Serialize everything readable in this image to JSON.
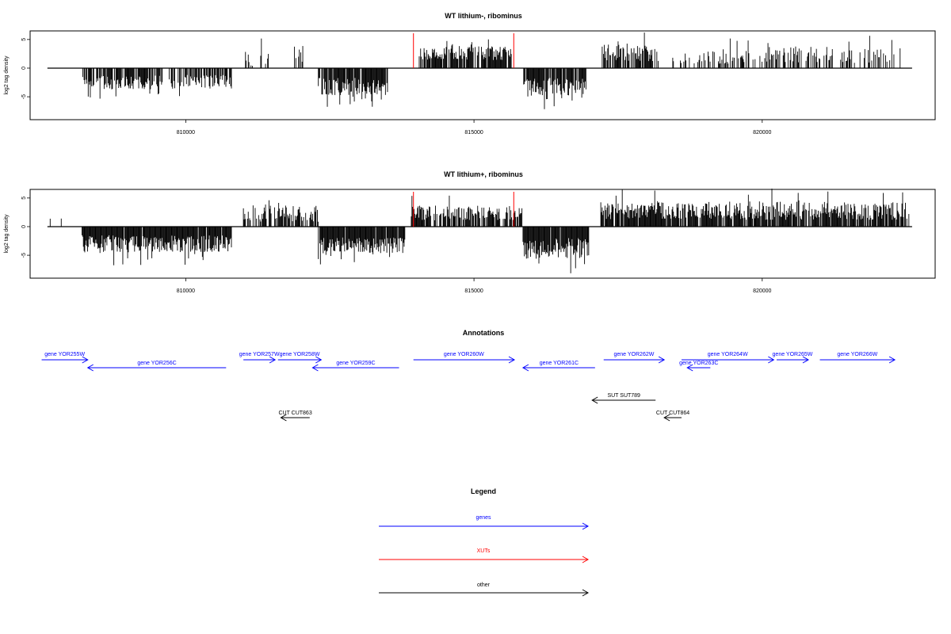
{
  "colors": {
    "genes": "#0000ff",
    "xuts": "#ff0000",
    "other": "#000000",
    "data": "#000000"
  },
  "chart_data": [
    {
      "type": "bar",
      "title": "WT lithium-, ribominus",
      "ylabel": "log2 tag density",
      "xlim": [
        807300,
        823000
      ],
      "ylim": [
        -9,
        6.5
      ],
      "x_ticks": [
        810000,
        815000,
        820000
      ],
      "x_tick_labels": [
        "810000",
        "815000",
        "820000"
      ],
      "y_ticks": [
        -5,
        0,
        5
      ],
      "y_tick_labels": [
        "-5",
        "0",
        "5"
      ],
      "baseline_range": [
        807600,
        822600
      ],
      "xut_markers": [
        813950,
        815690
      ],
      "segments": [
        {
          "start": 808200,
          "end": 809600,
          "sign": -1,
          "mean": 2.5,
          "amp": 1.2,
          "density": 0.75,
          "seed": 11
        },
        {
          "start": 809700,
          "end": 810800,
          "sign": -1,
          "mean": 2.4,
          "amp": 1.2,
          "density": 0.7,
          "seed": 12
        },
        {
          "start": 811000,
          "end": 811600,
          "sign": 1,
          "mean": 1.6,
          "amp": 1.6,
          "density": 0.25,
          "seed": 13
        },
        {
          "start": 811850,
          "end": 812050,
          "sign": 1,
          "mean": 2.4,
          "amp": 1.5,
          "density": 0.4,
          "seed": 14
        },
        {
          "start": 812300,
          "end": 813500,
          "sign": -1,
          "mean": 3.2,
          "amp": 1.5,
          "density": 0.9,
          "seed": 15
        },
        {
          "start": 814050,
          "end": 815650,
          "sign": 1,
          "mean": 2.6,
          "amp": 1.2,
          "density": 0.85,
          "seed": 16
        },
        {
          "start": 815850,
          "end": 816950,
          "sign": -1,
          "mean": 3.2,
          "amp": 1.6,
          "density": 0.9,
          "seed": 17
        },
        {
          "start": 817200,
          "end": 818200,
          "sign": 1,
          "mean": 2.7,
          "amp": 1.5,
          "density": 0.75,
          "seed": 18
        },
        {
          "start": 818400,
          "end": 820100,
          "sign": 1,
          "mean": 2.0,
          "amp": 1.3,
          "density": 0.35,
          "seed": 19
        },
        {
          "start": 820100,
          "end": 821000,
          "sign": 1,
          "mean": 2.4,
          "amp": 1.4,
          "density": 0.45,
          "seed": 20
        },
        {
          "start": 821000,
          "end": 822450,
          "sign": 1,
          "mean": 2.3,
          "amp": 1.4,
          "density": 0.35,
          "seed": 21
        }
      ]
    },
    {
      "type": "bar",
      "title": "WT lithium+, ribominus",
      "ylabel": "log2 tag density",
      "xlim": [
        807300,
        823000
      ],
      "ylim": [
        -9,
        6.5
      ],
      "x_ticks": [
        810000,
        815000,
        820000
      ],
      "x_tick_labels": [
        "810000",
        "815000",
        "820000"
      ],
      "y_ticks": [
        -5,
        0,
        5
      ],
      "y_tick_labels": [
        "-5",
        "0",
        "5"
      ],
      "baseline_range": [
        807600,
        822600
      ],
      "xut_markers": [
        813950,
        815690
      ],
      "segments": [
        {
          "start": 807600,
          "end": 808200,
          "sign": 1,
          "mean": 1.0,
          "amp": 0.7,
          "density": 0.06,
          "seed": 31
        },
        {
          "start": 808200,
          "end": 810800,
          "sign": -1,
          "mean": 3.0,
          "amp": 1.5,
          "density": 0.95,
          "seed": 32
        },
        {
          "start": 811000,
          "end": 812300,
          "sign": 1,
          "mean": 2.3,
          "amp": 1.5,
          "density": 0.6,
          "seed": 33
        },
        {
          "start": 812300,
          "end": 813800,
          "sign": -1,
          "mean": 3.3,
          "amp": 1.4,
          "density": 0.95,
          "seed": 34
        },
        {
          "start": 813900,
          "end": 815850,
          "sign": 1,
          "mean": 2.4,
          "amp": 1.3,
          "density": 0.8,
          "seed": 35
        },
        {
          "start": 815850,
          "end": 817000,
          "sign": -1,
          "mean": 3.8,
          "amp": 1.8,
          "density": 0.95,
          "seed": 36
        },
        {
          "start": 817200,
          "end": 818800,
          "sign": 1,
          "mean": 2.8,
          "amp": 1.5,
          "density": 0.9,
          "seed": 37
        },
        {
          "start": 818800,
          "end": 822550,
          "sign": 1,
          "mean": 2.8,
          "amp": 1.6,
          "density": 0.85,
          "seed": 38
        }
      ]
    }
  ],
  "annotations": {
    "title": "Annotations",
    "features": [
      {
        "label": "gene YOR255W",
        "start": 807500,
        "end": 808300,
        "strand": "+",
        "type": "genes",
        "row": "upper"
      },
      {
        "label": "gene YOR256C",
        "start": 808300,
        "end": 810700,
        "strand": "-",
        "type": "genes",
        "row": "lower"
      },
      {
        "label": "gene YOR257W",
        "start": 811000,
        "end": 811550,
        "strand": "+",
        "type": "genes",
        "row": "upper"
      },
      {
        "label": "gene YOR258W",
        "start": 811600,
        "end": 812350,
        "strand": "+",
        "type": "genes",
        "row": "upper"
      },
      {
        "label": "gene YOR259C",
        "start": 812200,
        "end": 813700,
        "strand": "-",
        "type": "genes",
        "row": "lower"
      },
      {
        "label": "gene YOR260W",
        "start": 813950,
        "end": 815700,
        "strand": "+",
        "type": "genes",
        "row": "upper"
      },
      {
        "label": "gene YOR261C",
        "start": 815850,
        "end": 817100,
        "strand": "-",
        "type": "genes",
        "row": "lower"
      },
      {
        "label": "gene YOR262W",
        "start": 817250,
        "end": 818300,
        "strand": "+",
        "type": "genes",
        "row": "upper"
      },
      {
        "label": "gene YOR263C",
        "start": 818700,
        "end": 819100,
        "strand": "-",
        "type": "genes",
        "row": "lower"
      },
      {
        "label": "gene YOR264W",
        "start": 818600,
        "end": 820200,
        "strand": "+",
        "type": "genes",
        "row": "upper"
      },
      {
        "label": "gene YOR265W",
        "start": 820250,
        "end": 820800,
        "strand": "+",
        "type": "genes",
        "row": "upper"
      },
      {
        "label": "gene YOR266W",
        "start": 821000,
        "end": 822300,
        "strand": "+",
        "type": "genes",
        "row": "upper"
      },
      {
        "label": "SUT SUT789",
        "start": 817050,
        "end": 818150,
        "strand": "-",
        "type": "other",
        "row": "sut"
      },
      {
        "label": "CUT CUT863",
        "start": 811650,
        "end": 812150,
        "strand": "-",
        "type": "other",
        "row": "cut"
      },
      {
        "label": "CUT CUT864",
        "start": 818300,
        "end": 818600,
        "strand": "-",
        "type": "other",
        "row": "cut"
      }
    ]
  },
  "legend": {
    "title": "Legend",
    "items": [
      {
        "label": "genes",
        "color": "#0000ff"
      },
      {
        "label": "XUTs",
        "color": "#ff0000"
      },
      {
        "label": "other",
        "color": "#000000"
      }
    ]
  }
}
